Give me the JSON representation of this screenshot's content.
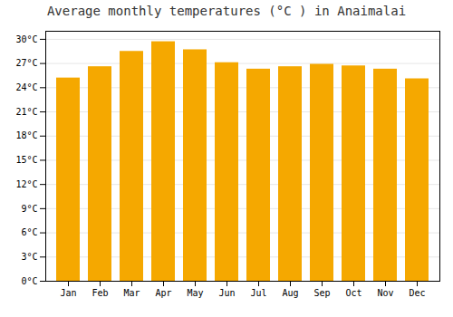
{
  "chart_data": {
    "type": "bar",
    "title": "Average monthly temperatures (°C ) in Anaimalai",
    "categories": [
      "Jan",
      "Feb",
      "Mar",
      "Apr",
      "May",
      "Jun",
      "Jul",
      "Aug",
      "Sep",
      "Oct",
      "Nov",
      "Dec"
    ],
    "values": [
      25.2,
      26.6,
      28.5,
      29.7,
      28.7,
      27.1,
      26.3,
      26.6,
      26.9,
      26.7,
      26.3,
      25.1
    ],
    "color": "#F5A800",
    "ylim": [
      0,
      31
    ],
    "yticks": [
      {
        "value": 0,
        "label": "0°C"
      },
      {
        "value": 3,
        "label": "3°C"
      },
      {
        "value": 6,
        "label": "6°C"
      },
      {
        "value": 9,
        "label": "9°C"
      },
      {
        "value": 12,
        "label": "12°C"
      },
      {
        "value": 15,
        "label": "15°C"
      },
      {
        "value": 18,
        "label": "18°C"
      },
      {
        "value": 21,
        "label": "21°C"
      },
      {
        "value": 24,
        "label": "24°C"
      },
      {
        "value": 27,
        "label": "27°C"
      },
      {
        "value": 30,
        "label": "30°C"
      }
    ],
    "grid": true
  }
}
